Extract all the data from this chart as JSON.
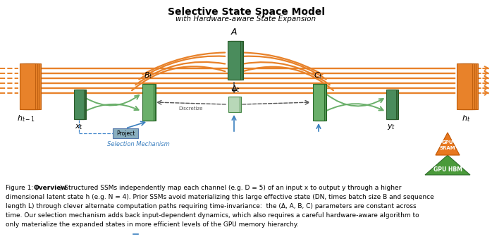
{
  "title": "Selective State Space Model",
  "subtitle": "with Hardware-aware State Expansion",
  "orange_color": "#E8822A",
  "green_dark": "#4A8C5C",
  "green_mid": "#6AAF6A",
  "green_pale": "#B8D8B8",
  "blue_box": "#8AAFC0",
  "blue_arrow": "#3A7FBF",
  "dashed_blue": "#4488CC",
  "bg_color": "#FFFFFF",
  "caption_line1a": "Figure 1: (",
  "caption_line1b": "Overview",
  "caption_line1c": ".) Structured SSMs independently map each channel (e.g. D = 5) of an input x to output y through a higher",
  "caption_line2": "dimensional latent state h (e.g. N = 4). Prior SSMs avoid materializing this large effective state (DN, times batch size B and sequence",
  "caption_line3": "length L) through clever alternate computation paths requiring time-invariance:  the (Δ, A, B, C) parameters are constant across",
  "caption_line4": "time. Our selection mechanism adds back input-dependent dynamics, which also requires a careful hardware-aware algorithm to",
  "caption_line5": "only materialize the expanded states in more efficient levels of the GPU memory hierarchy."
}
